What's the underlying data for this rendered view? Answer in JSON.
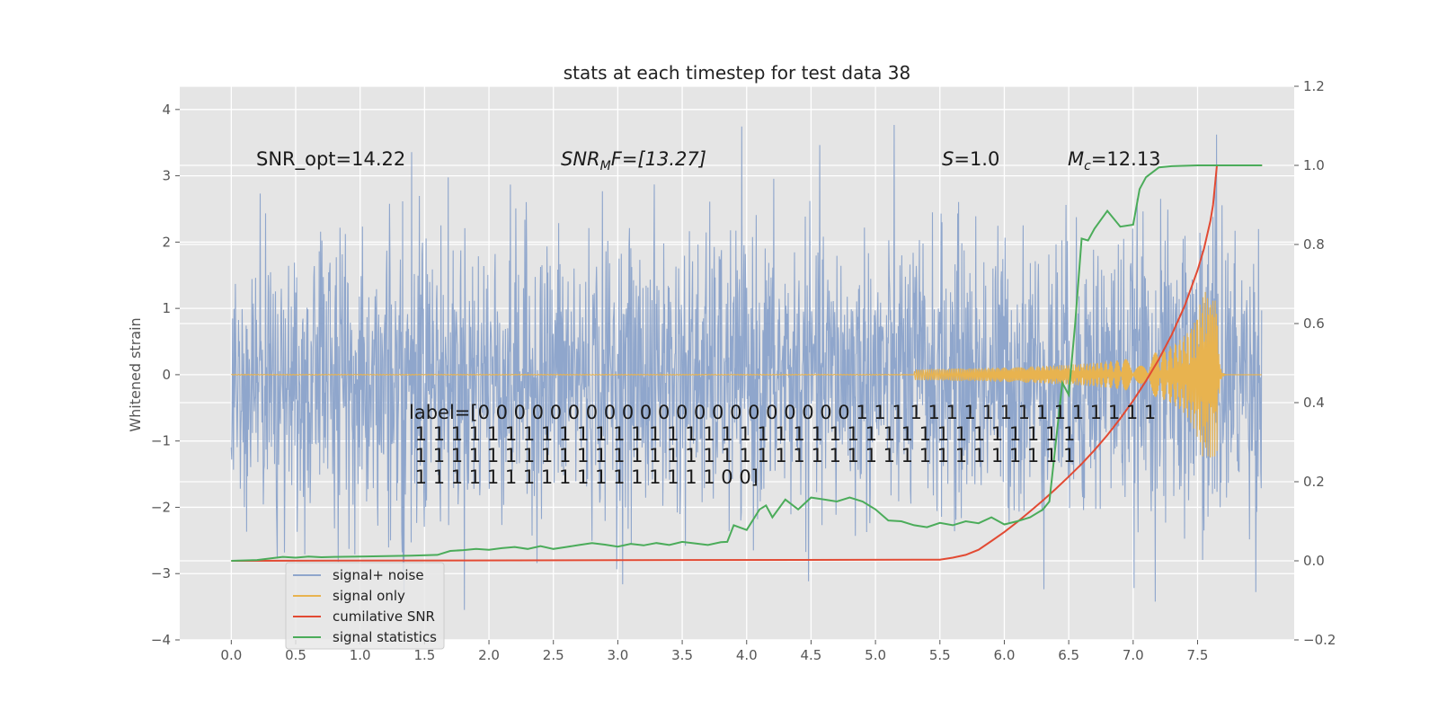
{
  "chart_data": {
    "type": "line",
    "title": "stats at each timestep for test data 38",
    "ylabel": "Whitened strain",
    "x_ticks": [
      "0.0",
      "0.5",
      "1.0",
      "1.5",
      "2.0",
      "2.5",
      "3.0",
      "3.5",
      "4.0",
      "4.5",
      "5.0",
      "5.5",
      "6.0",
      "6.5",
      "7.0",
      "7.5"
    ],
    "y_ticks": [
      "4",
      "3",
      "2",
      "1",
      "0",
      "−1",
      "−2",
      "−3",
      "−4"
    ],
    "y2_ticks": [
      "1.2",
      "1.0",
      "0.8",
      "0.6",
      "0.4",
      "0.2",
      "0.0",
      "−0.2"
    ],
    "xlim": [
      -0.4,
      8.25
    ],
    "ylim": [
      -4,
      4.35
    ],
    "y2lim": [
      -0.2,
      1.2
    ],
    "grid": true,
    "legend_position": "lower-left",
    "annotations": {
      "snr_opt": "SNR_opt=14.22",
      "snr_mf_main": "SNR",
      "snr_mf_sub": "M",
      "snr_mf_rest": "F=[13.27]",
      "s_main": "S",
      "s_rest": "=1.0",
      "mc_main": "M",
      "mc_sub": "c",
      "mc_rest": "=12.13",
      "label_lines": [
        "label=[0 0 0 0 0 0 0 0 0 0 0 0 0 0 0 0 0 0 0 0 0 1 1 1 1 1 1 1 1 1 1 1 1 1 1 1 1 1",
        " 1 1 1 1 1 1 1 1 1 1 1 1 1 1 1 1 1 1 1 1 1 1 1 1 1 1 1 1 1 1 1 1 1 1 1 1 1",
        " 1 1 1 1 1 1 1 1 1 1 1 1 1 1 1 1 1 1 1 1 1 1 1 1 1 1 1 1 1 1 1 1 1 1 1 1 1",
        " 1 1 1 1 1 1 1 1 1 1 1 1 1 1 1 1 1 0 0]"
      ]
    },
    "series": [
      {
        "name": "signal+ noise",
        "color": "#8fa6cc",
        "axis": "left"
      },
      {
        "name": "signal only",
        "color": "#e8b34f",
        "axis": "left",
        "merger_time": 7.65
      },
      {
        "name": "cumilative SNR",
        "color": "#e24a33",
        "axis": "right",
        "x": [
          0.0,
          5.5,
          5.6,
          5.7,
          5.8,
          5.9,
          6.0,
          6.1,
          6.2,
          6.3,
          6.4,
          6.5,
          6.6,
          6.7,
          6.8,
          6.9,
          7.0,
          7.1,
          7.2,
          7.3,
          7.4,
          7.5,
          7.55,
          7.6,
          7.62,
          7.65,
          7.7,
          7.8,
          7.9,
          8.0
        ],
        "values": [
          0.0,
          0.003,
          0.008,
          0.015,
          0.028,
          0.05,
          0.073,
          0.098,
          0.125,
          0.153,
          0.182,
          0.213,
          0.245,
          0.28,
          0.318,
          0.36,
          0.405,
          0.455,
          0.51,
          0.572,
          0.645,
          0.735,
          0.79,
          0.86,
          0.9,
          1.0,
          1.0,
          1.0,
          1.0,
          1.0
        ]
      },
      {
        "name": "signal statistics",
        "color": "#4bac5a",
        "axis": "right",
        "x": [
          0.0,
          0.2,
          0.3,
          0.4,
          0.5,
          0.6,
          0.7,
          0.8,
          1.0,
          1.2,
          1.4,
          1.6,
          1.7,
          1.8,
          1.9,
          2.0,
          2.1,
          2.2,
          2.3,
          2.4,
          2.5,
          2.6,
          2.7,
          2.8,
          2.9,
          3.0,
          3.1,
          3.2,
          3.3,
          3.4,
          3.5,
          3.6,
          3.7,
          3.8,
          3.85,
          3.9,
          4.0,
          4.1,
          4.15,
          4.2,
          4.3,
          4.4,
          4.5,
          4.6,
          4.7,
          4.8,
          4.9,
          5.0,
          5.1,
          5.2,
          5.3,
          5.4,
          5.5,
          5.6,
          5.7,
          5.8,
          5.9,
          6.0,
          6.1,
          6.2,
          6.3,
          6.35,
          6.4,
          6.45,
          6.5,
          6.55,
          6.6,
          6.65,
          6.7,
          6.8,
          6.9,
          7.0,
          7.05,
          7.1,
          7.2,
          7.3,
          7.5,
          7.7,
          8.0
        ],
        "values": [
          0.0,
          0.002,
          0.006,
          0.01,
          0.008,
          0.011,
          0.009,
          0.01,
          0.011,
          0.012,
          0.013,
          0.015,
          0.025,
          0.027,
          0.03,
          0.028,
          0.032,
          0.035,
          0.03,
          0.037,
          0.03,
          0.035,
          0.04,
          0.045,
          0.041,
          0.036,
          0.043,
          0.039,
          0.045,
          0.04,
          0.048,
          0.044,
          0.04,
          0.047,
          0.048,
          0.09,
          0.078,
          0.13,
          0.14,
          0.11,
          0.155,
          0.13,
          0.16,
          0.155,
          0.15,
          0.16,
          0.15,
          0.13,
          0.102,
          0.1,
          0.09,
          0.085,
          0.096,
          0.09,
          0.1,
          0.095,
          0.11,
          0.092,
          0.1,
          0.11,
          0.13,
          0.15,
          0.3,
          0.45,
          0.42,
          0.6,
          0.815,
          0.81,
          0.84,
          0.885,
          0.845,
          0.85,
          0.94,
          0.97,
          0.995,
          0.998,
          1.0,
          1.0,
          1.0
        ]
      }
    ]
  }
}
